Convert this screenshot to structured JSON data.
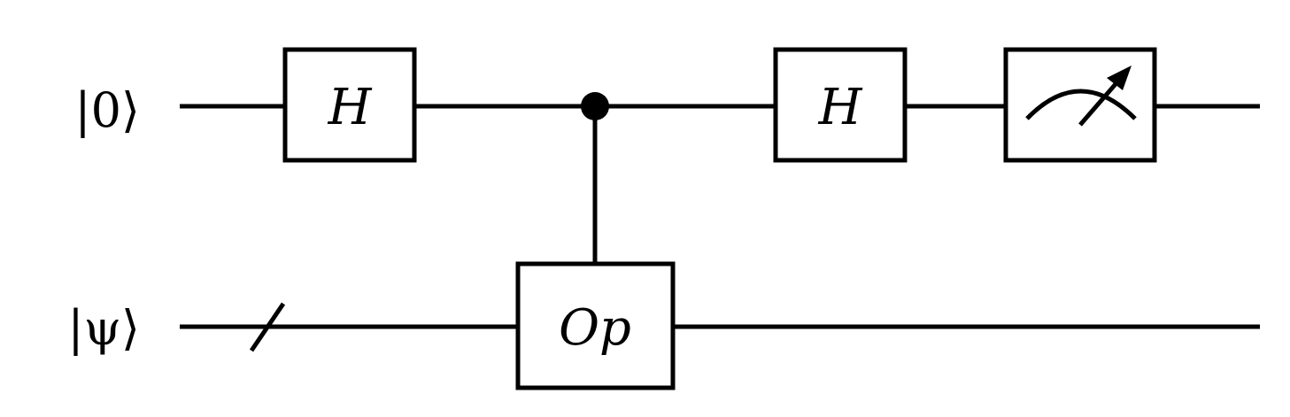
{
  "circuit": {
    "qubits": [
      {
        "label_text": "|0⟩"
      },
      {
        "label_text": "|ψ⟩"
      }
    ],
    "gates": [
      {
        "label": "H"
      },
      {
        "label": "Op"
      },
      {
        "label": "H"
      }
    ],
    "control": {
      "control_qubit": 0,
      "target_qubit": 1,
      "target_gate": "Op"
    },
    "measurement": {
      "qubit": 0
    },
    "register_slash": {
      "qubit": 1
    }
  }
}
